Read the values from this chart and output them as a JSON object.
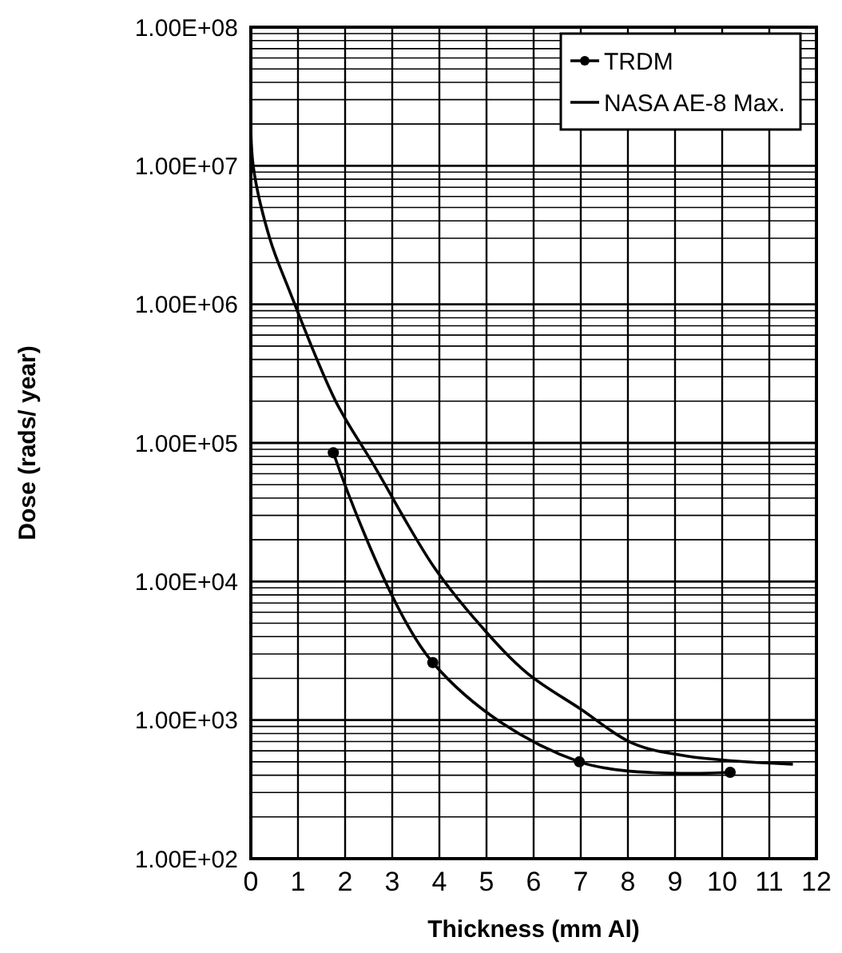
{
  "chart_data": {
    "type": "line",
    "xlabel": "Thickness (mm Al)",
    "ylabel": "Dose (rads/ year)",
    "log": "y",
    "grid": true,
    "legend": "top right",
    "xlim": [
      0,
      12
    ],
    "xticks": [
      0,
      1,
      2,
      3,
      4,
      5,
      6,
      7,
      8,
      9,
      10,
      11,
      12
    ],
    "ylim": [
      100,
      100000000
    ],
    "yticks": [
      {
        "value": 100,
        "label": "1.00E+02"
      },
      {
        "value": 1000,
        "label": "1.00E+03"
      },
      {
        "value": 10000,
        "label": "1.00E+04"
      },
      {
        "value": 100000,
        "label": "1.00E+05"
      },
      {
        "value": 1000000,
        "label": "1.00E+06"
      },
      {
        "value": 10000000,
        "label": "1.00E+07"
      },
      {
        "value": 100000000,
        "label": "1.00E+08"
      }
    ],
    "series": [
      {
        "name": "TRDM",
        "color": "#000000",
        "marker": "circle",
        "x": [
          1.75,
          3.86,
          6.97,
          10.17
        ],
        "values": [
          85000,
          2600,
          500,
          420
        ]
      },
      {
        "name": "NASA AE-8 Max.",
        "color": "#000000",
        "marker": "none",
        "x": [
          0,
          0.05,
          0.4,
          0.8,
          1.8,
          2.6,
          3.9,
          4.9,
          5.85,
          7,
          8.1,
          9.25,
          11.5
        ],
        "values": [
          30000000,
          10000000,
          3000000,
          1300000,
          200000,
          70000,
          12500,
          4700,
          2200,
          1200,
          680,
          550,
          480
        ]
      }
    ]
  }
}
